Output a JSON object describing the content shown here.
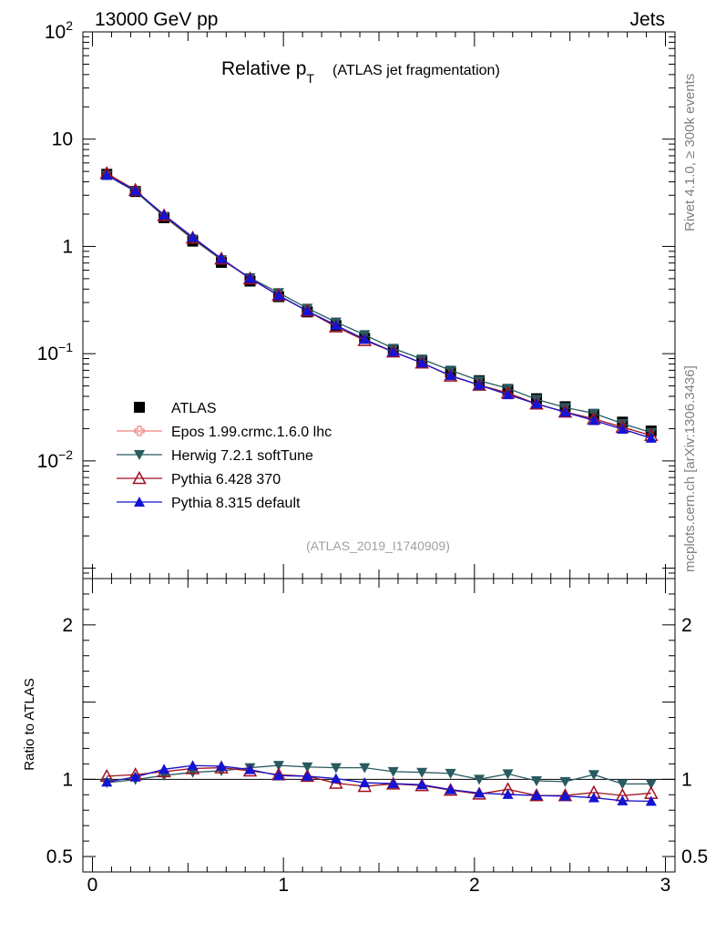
{
  "header": {
    "left": "13000 GeV pp",
    "right": "Jets"
  },
  "side_text": {
    "rivet": "Rivet 4.1.0, ≥ 300k events",
    "mcplots": "mcplots.cern.ch [arXiv:1306.3436]"
  },
  "title": {
    "main": "Relative p",
    "sub": "T",
    "paren": "(ATLAS jet fragmentation)"
  },
  "analysis_id": "(ATLAS_2019_I1740909)",
  "ratio_ylabel": "Ratio to ATLAS",
  "upper_ticks": [
    {
      "v": 100,
      "base": "10",
      "exp": "2"
    },
    {
      "v": 10,
      "base": "10",
      "exp": ""
    },
    {
      "v": 1,
      "base": "1",
      "exp": ""
    },
    {
      "v": 0.1,
      "base": "10",
      "exp": "−1"
    },
    {
      "v": 0.01,
      "base": "10",
      "exp": "−2"
    }
  ],
  "ratio_ticks": [
    {
      "v": 2,
      "label": "2"
    },
    {
      "v": 1,
      "label": "1"
    },
    {
      "v": 0.5,
      "label": "0.5"
    }
  ],
  "x_ticks": [
    {
      "v": 0,
      "label": "0"
    },
    {
      "v": 1,
      "label": "1"
    },
    {
      "v": 2,
      "label": "2"
    },
    {
      "v": 3,
      "label": "3"
    }
  ],
  "colors": {
    "atlas": "#000000",
    "epos": "#f08080",
    "herwig": "#285a5f",
    "pythia6": "#a01020",
    "pythia8": "#1414d2"
  },
  "chart_data": {
    "type": "line",
    "title": "Relative pT (ATLAS jet fragmentation)",
    "xlabel": "",
    "ylabel": "",
    "xlim": [
      -0.05,
      3.05
    ],
    "ylim": [
      0.0008,
      100
    ],
    "yscale": "log",
    "ratio_ylim": [
      0.4,
      2.3
    ],
    "x": [
      0.075,
      0.225,
      0.375,
      0.525,
      0.675,
      0.825,
      0.975,
      1.125,
      1.275,
      1.425,
      1.575,
      1.725,
      1.875,
      2.025,
      2.175,
      2.325,
      2.475,
      2.625,
      2.775,
      2.925
    ],
    "atlas": [
      4.7,
      3.25,
      1.85,
      1.12,
      0.71,
      0.475,
      0.34,
      0.245,
      0.183,
      0.139,
      0.107,
      0.085,
      0.067,
      0.056,
      0.046,
      0.038,
      0.032,
      0.027,
      0.023,
      0.019
    ],
    "series": [
      {
        "name": "Epos 1.99.crmc.1.6.0 lhc",
        "key": "epos",
        "marker": "cross-open",
        "values": [
          4.62,
          3.3,
          1.97,
          1.22,
          0.77,
          0.505,
          0.348,
          0.25,
          0.184,
          0.136,
          0.104,
          0.082,
          0.0625,
          0.051,
          0.0415,
          0.034,
          0.0285,
          0.0238,
          0.0198,
          0.0163
        ],
        "ratio": [
          0.983,
          1.015,
          1.065,
          1.089,
          1.085,
          1.063,
          1.024,
          1.02,
          1.005,
          0.978,
          0.972,
          0.965,
          0.933,
          0.911,
          0.902,
          0.895,
          0.891,
          0.881,
          0.861,
          0.858
        ]
      },
      {
        "name": "Herwig 7.2.1 softTune",
        "key": "herwig",
        "marker": "triangle-down",
        "values": [
          4.6,
          3.25,
          1.9,
          1.17,
          0.75,
          0.51,
          0.37,
          0.265,
          0.197,
          0.15,
          0.112,
          0.089,
          0.07,
          0.056,
          0.0475,
          0.0375,
          0.0315,
          0.0278,
          0.0223,
          0.0184
        ],
        "ratio": [
          0.978,
          0.998,
          1.025,
          1.045,
          1.055,
          1.075,
          1.09,
          1.08,
          1.075,
          1.075,
          1.05,
          1.045,
          1.038,
          1.0,
          1.035,
          0.99,
          0.985,
          1.03,
          0.97,
          0.97
        ]
      },
      {
        "name": "Pythia 6.428 370",
        "key": "pythia6",
        "marker": "triangle-up-open",
        "values": [
          4.8,
          3.35,
          1.94,
          1.2,
          0.765,
          0.5,
          0.35,
          0.25,
          0.178,
          0.133,
          0.104,
          0.082,
          0.062,
          0.051,
          0.043,
          0.034,
          0.0286,
          0.0247,
          0.0206,
          0.0173
        ],
        "ratio": [
          1.02,
          1.03,
          1.05,
          1.07,
          1.075,
          1.055,
          1.03,
          1.02,
          0.975,
          0.955,
          0.97,
          0.96,
          0.93,
          0.905,
          0.935,
          0.895,
          0.895,
          0.915,
          0.895,
          0.91
        ]
      },
      {
        "name": "Pythia 8.315 default",
        "key": "pythia8",
        "marker": "triangle-up",
        "values": [
          4.62,
          3.3,
          1.97,
          1.22,
          0.77,
          0.505,
          0.348,
          0.25,
          0.184,
          0.136,
          0.104,
          0.082,
          0.0625,
          0.051,
          0.0415,
          0.034,
          0.0285,
          0.0238,
          0.0198,
          0.0163
        ],
        "ratio": [
          0.983,
          1.015,
          1.065,
          1.089,
          1.085,
          1.063,
          1.024,
          1.02,
          1.005,
          0.978,
          0.972,
          0.965,
          0.933,
          0.911,
          0.902,
          0.895,
          0.891,
          0.881,
          0.861,
          0.858
        ]
      }
    ],
    "legend": [
      {
        "label": "ATLAS",
        "key": "atlas",
        "marker": "square"
      },
      {
        "label": "Epos 1.99.crmc.1.6.0 lhc",
        "key": "epos",
        "marker": "cross-open"
      },
      {
        "label": "Herwig 7.2.1 softTune",
        "key": "herwig",
        "marker": "triangle-down"
      },
      {
        "label": "Pythia 6.428 370",
        "key": "pythia6",
        "marker": "triangle-up-open"
      },
      {
        "label": "Pythia 8.315 default",
        "key": "pythia8",
        "marker": "triangle-up"
      }
    ]
  }
}
